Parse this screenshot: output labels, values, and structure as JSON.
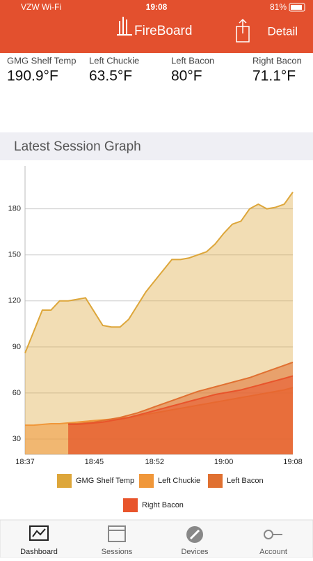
{
  "status_bar": {
    "carrier": "VZW Wi-Fi",
    "time": "19:08",
    "battery": "81%"
  },
  "header": {
    "title": "FireBoard",
    "action": "Detail"
  },
  "readouts": [
    {
      "label": "GMG Shelf Temp",
      "value": "190.9°F"
    },
    {
      "label": "Left Chuckie",
      "value": "63.5°F"
    },
    {
      "label": "Left Bacon",
      "value": "80°F"
    },
    {
      "label": "Right Bacon",
      "value": "71.1°F"
    }
  ],
  "section_title": "Latest Session Graph",
  "chart_data": {
    "type": "area",
    "x": [
      "18:37",
      "18:38",
      "18:39",
      "18:40",
      "18:41",
      "18:42",
      "18:43",
      "18:44",
      "18:45",
      "18:46",
      "18:47",
      "18:48",
      "18:49",
      "18:50",
      "18:51",
      "18:52",
      "18:53",
      "18:54",
      "18:55",
      "18:56",
      "18:57",
      "18:58",
      "18:59",
      "19:00",
      "19:01",
      "19:02",
      "19:03",
      "19:04",
      "19:05",
      "19:06",
      "19:07",
      "19:08"
    ],
    "xticks": [
      "18:37",
      "18:45",
      "18:52",
      "19:00",
      "19:08"
    ],
    "ylim": [
      20,
      208
    ],
    "yticks": [
      30,
      60,
      90,
      120,
      150,
      180
    ],
    "grid": true,
    "series": [
      {
        "name": "GMG Shelf Temp",
        "color": "#dda63a",
        "values": [
          86,
          100,
          114,
          114,
          120,
          120,
          121,
          122,
          113,
          104,
          103,
          103,
          108,
          117,
          126,
          133,
          140,
          147,
          147,
          148,
          150,
          152,
          157,
          164,
          170,
          172,
          180,
          183,
          180,
          181,
          183,
          190.9
        ]
      },
      {
        "name": "Left Chuckie",
        "color": "#f0973a",
        "values": [
          39,
          39,
          39.5,
          40,
          40,
          40.5,
          41,
          41.5,
          42,
          42.5,
          43,
          43.5,
          44,
          45,
          46,
          47,
          48,
          49,
          50,
          51,
          52,
          53,
          54,
          55,
          56,
          57,
          58,
          59,
          60,
          61,
          62,
          63.5
        ]
      },
      {
        "name": "Left Bacon",
        "color": "#e07031",
        "values": [
          null,
          null,
          null,
          null,
          null,
          40,
          40,
          40.5,
          41,
          42,
          43,
          44,
          45.5,
          47,
          49,
          51,
          53,
          55,
          57,
          59,
          61,
          62.5,
          64,
          65.5,
          67,
          68.5,
          70,
          72,
          74,
          76,
          78,
          80
        ]
      },
      {
        "name": "Right Bacon",
        "color": "#e8542b",
        "values": [
          null,
          null,
          null,
          null,
          null,
          39.5,
          39.5,
          40,
          40.5,
          41,
          42,
          43,
          44,
          45.5,
          47,
          48.5,
          50,
          51.5,
          53,
          54.5,
          56,
          57.5,
          59,
          60,
          61,
          62,
          63.5,
          65,
          66.5,
          68,
          69.5,
          71.1
        ]
      }
    ]
  },
  "tabs": [
    "Dashboard",
    "Sessions",
    "Devices",
    "Account"
  ]
}
